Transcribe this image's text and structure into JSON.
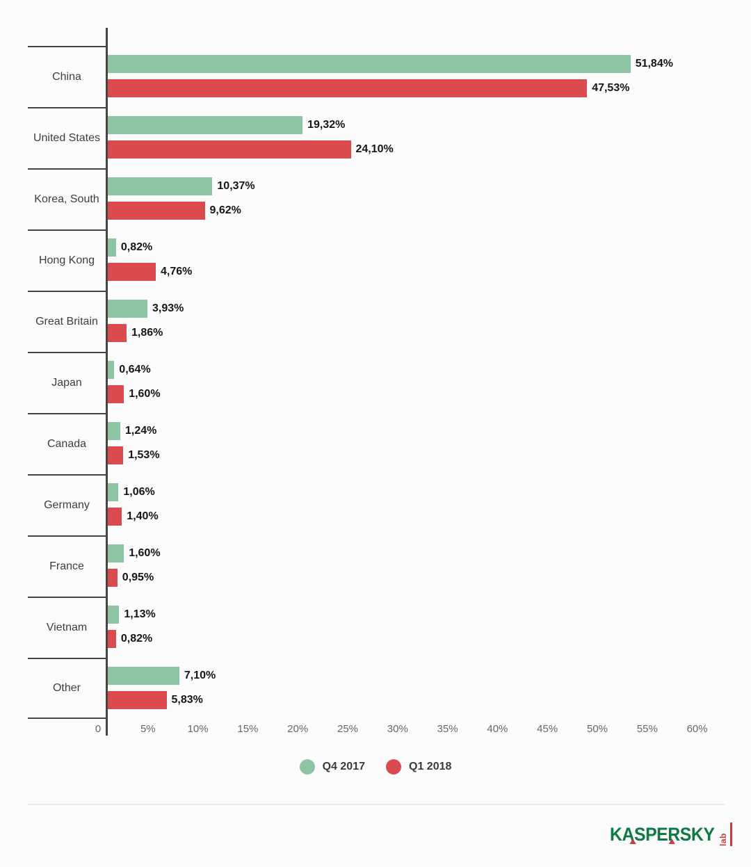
{
  "chart_data": {
    "type": "bar",
    "orientation": "horizontal",
    "title": "",
    "categories": [
      "China",
      "United States",
      "Korea, South",
      "Hong Kong",
      "Great Britain",
      "Japan",
      "Canada",
      "Germany",
      "France",
      "Vietnam",
      "Other"
    ],
    "series": [
      {
        "name": "Q4 2017",
        "color": "#8DC4A4",
        "values": [
          51.84,
          19.32,
          10.37,
          0.82,
          3.93,
          0.64,
          1.24,
          1.06,
          1.6,
          1.13,
          7.1
        ],
        "display": [
          "51,84%",
          "19,32%",
          "10,37%",
          "0,82%",
          "3,93%",
          "0,64%",
          "1,24%",
          "1,06%",
          "1,60%",
          "1,13%",
          "7,10%"
        ]
      },
      {
        "name": "Q1 2018",
        "color": "#D94B4F",
        "values": [
          47.53,
          24.1,
          9.62,
          4.76,
          1.86,
          1.6,
          1.53,
          1.4,
          0.95,
          0.82,
          5.83
        ],
        "display": [
          "47,53%",
          "24,10%",
          "9,62%",
          "4,76%",
          "1,86%",
          "1,60%",
          "1,53%",
          "1,40%",
          "0,95%",
          "0,82%",
          "5,83%"
        ]
      }
    ],
    "xlim": [
      0,
      60
    ],
    "xticks": [
      "0",
      "5%",
      "10%",
      "15%",
      "20%",
      "25%",
      "30%",
      "35%",
      "40%",
      "45%",
      "50%",
      "55%",
      "60%"
    ],
    "grid": false,
    "legend_position": "bottom",
    "value_label_format": "comma-decimal percent, bold, right of bar",
    "axis_color": "#454545"
  },
  "legend": {
    "items": [
      {
        "label": "Q4 2017",
        "color": "#8DC4A4"
      },
      {
        "label": "Q1 2018",
        "color": "#D94B4F"
      }
    ]
  },
  "branding": {
    "logo_text": "KASPERSKY",
    "logo_sub": "lab",
    "logo_green": "#0B7A43",
    "logo_red": "#CE3A41"
  }
}
